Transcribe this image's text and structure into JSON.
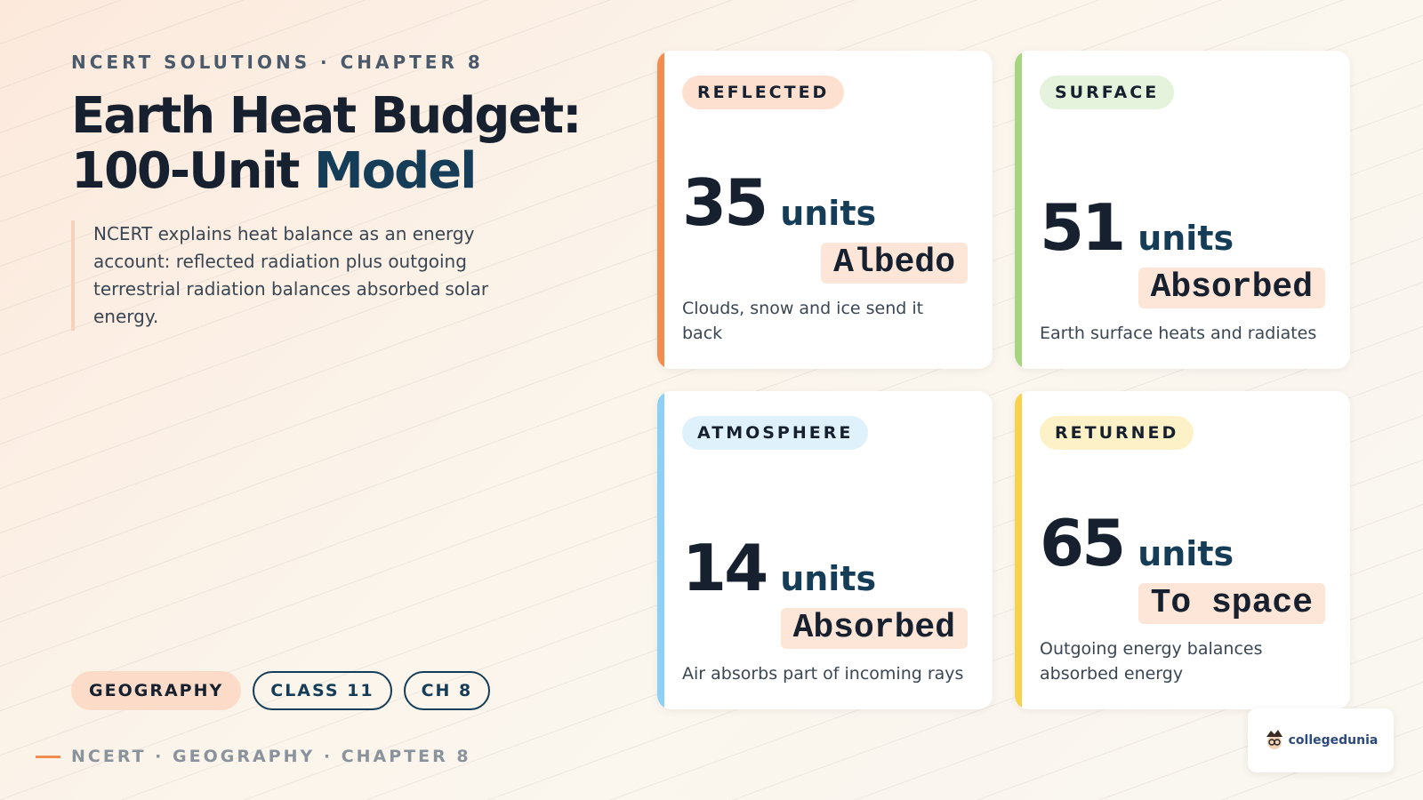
{
  "header": {
    "kicker": "NCERT SOLUTIONS · CHAPTER 8",
    "title_line1": "Earth Heat Budget:",
    "title_line2": "100-Unit",
    "title_accent": "Model",
    "lead": "NCERT explains heat balance as an energy account: reflected radiation plus outgoing terrestrial radiation balances absorbed solar energy."
  },
  "chips": [
    "GEOGRAPHY",
    "CLASS 11",
    "CH 8"
  ],
  "footer": "NCERT · GEOGRAPHY · CHAPTER 8",
  "cards": [
    {
      "tag": "REFLECTED",
      "value": 35,
      "unit": "units",
      "label": "Albedo",
      "description": "Clouds, snow and ice send it back",
      "accent": "#f28c4f",
      "tag_bg": "#fde0d0"
    },
    {
      "tag": "SURFACE",
      "value": 51,
      "unit": "units",
      "label": "Absorbed",
      "description": "Earth surface heats and radiates",
      "accent": "#a7d47f",
      "tag_bg": "#e6f3dc"
    },
    {
      "tag": "ATMOSPHERE",
      "value": 14,
      "unit": "units",
      "label": "Absorbed",
      "description": "Air absorbs part of incoming rays",
      "accent": "#8dd0f5",
      "tag_bg": "#dff1fb"
    },
    {
      "tag": "RETURNED",
      "value": 65,
      "unit": "units",
      "label": "To space",
      "description": "Outgoing energy balances absorbed energy",
      "accent": "#f7d24a",
      "tag_bg": "#fdf1c8"
    }
  ],
  "logo": "collegedunia"
}
